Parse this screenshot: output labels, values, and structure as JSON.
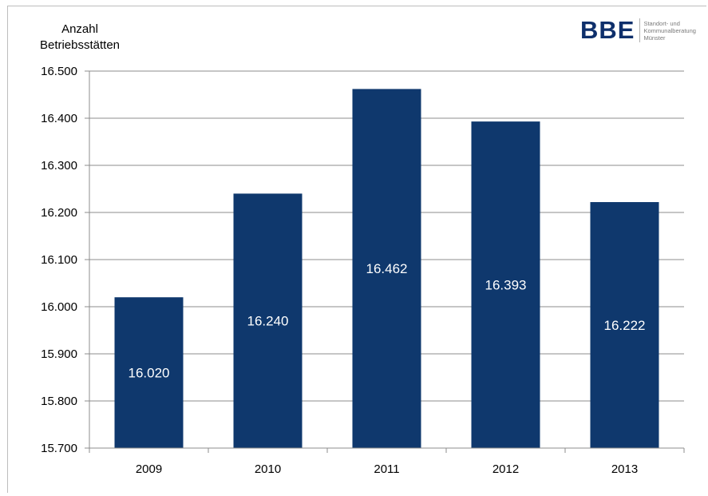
{
  "chart_data": {
    "type": "bar",
    "ylabel_lines": [
      "Anzahl",
      "Betriebsstätten"
    ],
    "categories": [
      "2009",
      "2010",
      "2011",
      "2012",
      "2013"
    ],
    "values": [
      16020,
      16240,
      16462,
      16393,
      16222
    ],
    "data_labels": [
      "16.020",
      "16.240",
      "16.462",
      "16.393",
      "16.222"
    ],
    "ylim": [
      15700,
      16500
    ],
    "yticks": [
      15700,
      15800,
      15900,
      16000,
      16100,
      16200,
      16300,
      16400,
      16500
    ],
    "ytick_labels": [
      "15.700",
      "15.800",
      "15.900",
      "16.000",
      "16.100",
      "16.200",
      "16.300",
      "16.400",
      "16.500"
    ],
    "grid": true,
    "bar_color": "#0f386d",
    "grid_color": "#8c8c8c"
  },
  "logo": {
    "mark": "BBE",
    "lines": [
      "Standort- und",
      "Kommunalberatung",
      "Münster"
    ]
  }
}
